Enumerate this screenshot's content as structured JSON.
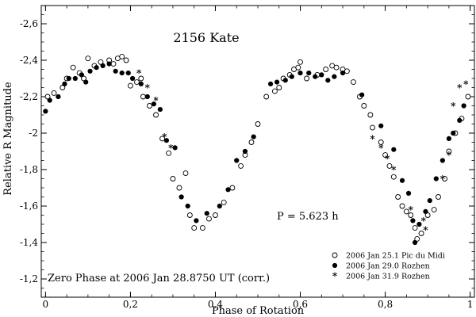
{
  "chart_data": {
    "type": "scatter",
    "title": "2156 Kate",
    "xlabel": "Phase of Rotation",
    "ylabel": "Relative R Magnitude",
    "xlim": [
      -0.01,
      1.01
    ],
    "ylim": [
      -1.1,
      -2.7
    ],
    "xticks": [
      0,
      0.2,
      0.4,
      0.6,
      0.8,
      1
    ],
    "xtick_labels": [
      "0",
      "0,2",
      "0,4",
      "0,6",
      "0,8",
      "1"
    ],
    "yticks": [
      -1.2,
      -1.4,
      -1.6,
      -1.8,
      -2.0,
      -2.2,
      -2.4,
      -2.6
    ],
    "ytick_labels": [
      "-1,2",
      "-1,4",
      "-1,6",
      "-1,8",
      "-2",
      "-2,2",
      "-2,4",
      "-2,6"
    ],
    "annotations": {
      "period": "P = 5.623 h",
      "zero_phase": "Zero Phase at 2006 Jan 28.8750 UT (corr.)"
    },
    "legend_position": "bottom-right",
    "series": [
      {
        "name": "2006 Jan 25.1 Pic du Midi",
        "marker": "open-circle",
        "points": [
          [
            0.005,
            -2.2
          ],
          [
            0.02,
            -2.22
          ],
          [
            0.04,
            -2.25
          ],
          [
            0.05,
            -2.3
          ],
          [
            0.065,
            -2.36
          ],
          [
            0.08,
            -2.33
          ],
          [
            0.09,
            -2.3
          ],
          [
            0.1,
            -2.41
          ],
          [
            0.115,
            -2.37
          ],
          [
            0.13,
            -2.39
          ],
          [
            0.15,
            -2.4
          ],
          [
            0.16,
            -2.38
          ],
          [
            0.17,
            -2.41
          ],
          [
            0.18,
            -2.42
          ],
          [
            0.19,
            -2.4
          ],
          [
            0.2,
            -2.26
          ],
          [
            0.215,
            -2.28
          ],
          [
            0.225,
            -2.3
          ],
          [
            0.23,
            -2.2
          ],
          [
            0.245,
            -2.15
          ],
          [
            0.26,
            -2.1
          ],
          [
            0.275,
            -1.97
          ],
          [
            0.29,
            -1.89
          ],
          [
            0.3,
            -1.75
          ],
          [
            0.315,
            -1.7
          ],
          [
            0.33,
            -1.78
          ],
          [
            0.34,
            -1.55
          ],
          [
            0.35,
            -1.48
          ],
          [
            0.37,
            -1.48
          ],
          [
            0.385,
            -1.53
          ],
          [
            0.4,
            -1.55
          ],
          [
            0.42,
            -1.62
          ],
          [
            0.44,
            -1.7
          ],
          [
            0.46,
            -1.82
          ],
          [
            0.47,
            -1.88
          ],
          [
            0.485,
            -1.95
          ],
          [
            0.5,
            -2.05
          ],
          [
            0.52,
            -2.2
          ],
          [
            0.54,
            -2.23
          ],
          [
            0.55,
            -2.25
          ],
          [
            0.56,
            -2.3
          ],
          [
            0.575,
            -2.32
          ],
          [
            0.585,
            -2.35
          ],
          [
            0.595,
            -2.36
          ],
          [
            0.6,
            -2.39
          ],
          [
            0.615,
            -2.3
          ],
          [
            0.64,
            -2.32
          ],
          [
            0.66,
            -2.35
          ],
          [
            0.675,
            -2.37
          ],
          [
            0.685,
            -2.36
          ],
          [
            0.7,
            -2.35
          ],
          [
            0.71,
            -2.34
          ],
          [
            0.725,
            -2.28
          ],
          [
            0.74,
            -2.2
          ],
          [
            0.75,
            -2.15
          ],
          [
            0.765,
            -2.1
          ],
          [
            0.77,
            -2.03
          ],
          [
            0.79,
            -1.95
          ],
          [
            0.8,
            -1.88
          ],
          [
            0.81,
            -1.82
          ],
          [
            0.82,
            -1.76
          ],
          [
            0.83,
            -1.65
          ],
          [
            0.84,
            -1.6
          ],
          [
            0.85,
            -1.57
          ],
          [
            0.86,
            -1.55
          ],
          [
            0.87,
            -1.48
          ],
          [
            0.875,
            -1.42
          ],
          [
            0.885,
            -1.45
          ],
          [
            0.9,
            -1.55
          ],
          [
            0.915,
            -1.58
          ],
          [
            0.925,
            -1.65
          ],
          [
            0.94,
            -1.75
          ],
          [
            0.95,
            -1.9
          ],
          [
            0.965,
            -2.0
          ],
          [
            0.98,
            -2.08
          ],
          [
            0.995,
            -2.2
          ]
        ]
      },
      {
        "name": "2006 Jan 29.0 Rozhen",
        "marker": "filled-circle",
        "points": [
          [
            0.0,
            -2.12
          ],
          [
            0.01,
            -2.18
          ],
          [
            0.03,
            -2.2
          ],
          [
            0.045,
            -2.27
          ],
          [
            0.055,
            -2.3
          ],
          [
            0.07,
            -2.3
          ],
          [
            0.085,
            -2.32
          ],
          [
            0.095,
            -2.28
          ],
          [
            0.105,
            -2.34
          ],
          [
            0.12,
            -2.36
          ],
          [
            0.135,
            -2.37
          ],
          [
            0.15,
            -2.38
          ],
          [
            0.165,
            -2.34
          ],
          [
            0.18,
            -2.33
          ],
          [
            0.195,
            -2.33
          ],
          [
            0.205,
            -2.3
          ],
          [
            0.225,
            -2.27
          ],
          [
            0.24,
            -2.2
          ],
          [
            0.255,
            -2.16
          ],
          [
            0.27,
            -2.13
          ],
          [
            0.285,
            -1.96
          ],
          [
            0.305,
            -1.92
          ],
          [
            0.32,
            -1.65
          ],
          [
            0.335,
            -1.6
          ],
          [
            0.355,
            -1.52
          ],
          [
            0.38,
            -1.56
          ],
          [
            0.41,
            -1.6
          ],
          [
            0.43,
            -1.69
          ],
          [
            0.45,
            -1.85
          ],
          [
            0.47,
            -1.9
          ],
          [
            0.49,
            -1.98
          ],
          [
            0.53,
            -2.27
          ],
          [
            0.545,
            -2.28
          ],
          [
            0.565,
            -2.29
          ],
          [
            0.58,
            -2.31
          ],
          [
            0.6,
            -2.33
          ],
          [
            0.62,
            -2.33
          ],
          [
            0.635,
            -2.31
          ],
          [
            0.65,
            -2.32
          ],
          [
            0.665,
            -2.29
          ],
          [
            0.68,
            -2.31
          ],
          [
            0.7,
            -2.33
          ],
          [
            0.745,
            -2.21
          ],
          [
            0.79,
            -2.04
          ],
          [
            0.82,
            -1.91
          ],
          [
            0.84,
            -1.74
          ],
          [
            0.855,
            -1.67
          ],
          [
            0.865,
            -1.52
          ],
          [
            0.87,
            -1.4
          ],
          [
            0.88,
            -1.5
          ],
          [
            0.895,
            -1.57
          ],
          [
            0.905,
            -1.63
          ],
          [
            0.92,
            -1.75
          ],
          [
            0.935,
            -1.85
          ],
          [
            0.95,
            -1.97
          ],
          [
            0.96,
            -2.0
          ],
          [
            0.975,
            -2.07
          ],
          [
            0.985,
            -2.15
          ]
        ]
      },
      {
        "name": "2006 Jan 31.9 Rozhen",
        "marker": "asterisk",
        "points": [
          [
            0.22,
            -2.33
          ],
          [
            0.24,
            -2.25
          ],
          [
            0.26,
            -2.18
          ],
          [
            0.28,
            -1.98
          ],
          [
            0.295,
            -1.92
          ],
          [
            0.77,
            -1.97
          ],
          [
            0.79,
            -1.92
          ],
          [
            0.805,
            -1.86
          ],
          [
            0.82,
            -1.8
          ],
          [
            0.86,
            -1.58
          ],
          [
            0.89,
            -1.52
          ],
          [
            0.895,
            -1.47
          ],
          [
            0.935,
            -1.75
          ],
          [
            0.95,
            -1.88
          ],
          [
            0.96,
            -2.15
          ],
          [
            0.975,
            -2.25
          ],
          [
            0.99,
            -2.27
          ]
        ]
      }
    ]
  }
}
